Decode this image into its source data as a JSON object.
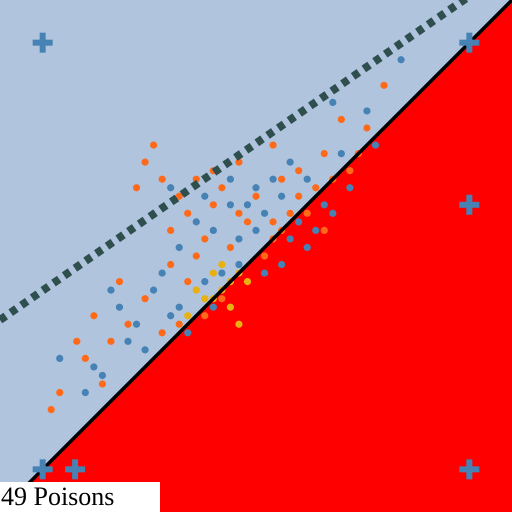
{
  "caption": "49 Poisons",
  "chart_data": {
    "type": "scatter",
    "title": "",
    "xlabel": "",
    "ylabel": "",
    "xlim": [
      -3,
      3
    ],
    "ylim": [
      -3,
      3
    ],
    "grid": false,
    "regions": {
      "upper_color": "#b0c4de",
      "lower_color": "#ff0000"
    },
    "boundaries": [
      {
        "style": "solid",
        "color": "#000000",
        "slope": 1.0,
        "intercept": 0.0
      },
      {
        "style": "dotted",
        "color": "#2f4f4f",
        "slope": 0.69,
        "intercept": 1.32
      }
    ],
    "markers": [
      {
        "symbol": "plus",
        "color": "#4682b4",
        "x": -2.5,
        "y": 2.5
      },
      {
        "symbol": "plus",
        "color": "#4682b4",
        "x": 2.5,
        "y": 2.5
      },
      {
        "symbol": "plus",
        "color": "#4682b4",
        "x": 2.5,
        "y": 0.6
      },
      {
        "symbol": "plus",
        "color": "#4682b4",
        "x": 2.5,
        "y": -2.5
      },
      {
        "symbol": "plus",
        "color": "#4682b4",
        "x": -2.5,
        "y": -2.5
      },
      {
        "symbol": "plus",
        "color": "#4682b4",
        "x": -2.12,
        "y": -2.5
      }
    ],
    "series": [
      {
        "color": "#4682b4",
        "points": [
          [
            -1.0,
            0.8
          ],
          [
            0.9,
            1.8
          ],
          [
            -0.3,
            0.6
          ],
          [
            0.0,
            0.3
          ],
          [
            -0.6,
            -0.3
          ],
          [
            -0.9,
            -0.6
          ],
          [
            -1.5,
            -1.0
          ],
          [
            -1.2,
            -0.4
          ],
          [
            0.4,
            0.2
          ],
          [
            0.1,
            -0.2
          ],
          [
            -0.2,
            0.2
          ],
          [
            0.6,
            0.9
          ],
          [
            1.1,
            0.8
          ],
          [
            1.7,
            2.3
          ],
          [
            0.3,
            0.7
          ],
          [
            -0.5,
            0.3
          ],
          [
            -1.6,
            -0.6
          ],
          [
            -1.9,
            -1.3
          ],
          [
            -2.0,
            -1.6
          ],
          [
            -0.1,
            0.6
          ],
          [
            0.5,
            0.4
          ],
          [
            0.8,
            0.6
          ],
          [
            -0.4,
            -0.2
          ],
          [
            -1.1,
            -0.2
          ],
          [
            -0.7,
            0.4
          ],
          [
            0.2,
            0.9
          ],
          [
            1.0,
            1.2
          ],
          [
            1.3,
            1.7
          ],
          [
            -1.3,
            -1.1
          ],
          [
            -0.8,
            -0.9
          ],
          [
            0.7,
            0.3
          ],
          [
            -0.2,
            -0.1
          ],
          [
            0.0,
            0.8
          ],
          [
            -1.7,
            -0.4
          ],
          [
            0.4,
            1.1
          ],
          [
            -0.9,
            0.1
          ],
          [
            1.4,
            1.3
          ],
          [
            -1.4,
            -0.8
          ],
          [
            -0.6,
            0.7
          ],
          [
            0.3,
            -0.1
          ],
          [
            -2.3,
            -1.2
          ],
          [
            -1.8,
            -1.4
          ],
          [
            -0.3,
            0.9
          ],
          [
            0.6,
            0.1
          ],
          [
            -1.0,
            -0.7
          ],
          [
            0.1,
            0.5
          ],
          [
            -0.5,
            -0.6
          ],
          [
            0.9,
            0.5
          ]
        ]
      },
      {
        "color": "#ff6a1a",
        "points": [
          [
            -1.3,
            1.1
          ],
          [
            -0.5,
            1.0
          ],
          [
            -0.9,
            0.7
          ],
          [
            -0.2,
            0.5
          ],
          [
            0.2,
            0.4
          ],
          [
            -0.6,
            0.2
          ],
          [
            -1.0,
            0.3
          ],
          [
            -1.3,
            -0.5
          ],
          [
            -1.7,
            -1.0
          ],
          [
            -2.0,
            -1.2
          ],
          [
            -2.3,
            -1.6
          ],
          [
            0.5,
            0.7
          ],
          [
            0.8,
            1.2
          ],
          [
            1.0,
            1.6
          ],
          [
            1.3,
            1.5
          ],
          [
            -0.8,
            -0.3
          ],
          [
            -0.4,
            -0.5
          ],
          [
            0.1,
            0.0
          ],
          [
            -0.1,
            0.4
          ],
          [
            -0.7,
            0.9
          ],
          [
            -1.1,
            0.9
          ],
          [
            0.3,
            0.9
          ],
          [
            0.7,
            0.8
          ],
          [
            -0.3,
            -0.3
          ],
          [
            -1.5,
            -0.8
          ],
          [
            -1.9,
            -0.7
          ],
          [
            -0.2,
            1.1
          ],
          [
            0.4,
            0.5
          ],
          [
            0.9,
            0.9
          ],
          [
            1.2,
            1.2
          ],
          [
            -1.2,
            1.3
          ],
          [
            -1.4,
            0.8
          ],
          [
            -0.9,
            -0.8
          ],
          [
            -0.5,
            0.6
          ],
          [
            0.0,
            0.7
          ],
          [
            0.6,
            0.5
          ],
          [
            -1.6,
            -0.3
          ],
          [
            -2.1,
            -1.0
          ],
          [
            -0.8,
            0.5
          ],
          [
            0.2,
            0.2
          ],
          [
            -0.3,
            0.1
          ],
          [
            0.5,
            1.0
          ],
          [
            1.5,
            2.0
          ],
          [
            -1.0,
            -0.1
          ],
          [
            -0.6,
            -0.7
          ],
          [
            0.8,
            0.3
          ],
          [
            -1.8,
            -1.5
          ],
          [
            -2.4,
            -1.8
          ],
          [
            0.2,
            1.3
          ],
          [
            -0.4,
            0.8
          ],
          [
            1.1,
            1.0
          ],
          [
            -1.1,
            -0.9
          ],
          [
            -0.7,
            0.0
          ],
          [
            0.3,
            0.3
          ]
        ]
      },
      {
        "color": "#e8b010",
        "points": [
          [
            -0.5,
            -0.2
          ],
          [
            -0.4,
            -0.4
          ],
          [
            -0.3,
            -0.3
          ],
          [
            -0.6,
            -0.5
          ],
          [
            -0.2,
            -0.2
          ],
          [
            -0.4,
            -0.1
          ],
          [
            -0.5,
            -0.5
          ],
          [
            -0.3,
            -0.6
          ],
          [
            -0.7,
            -0.4
          ],
          [
            -0.1,
            -0.3
          ],
          [
            -0.8,
            -0.7
          ],
          [
            -0.2,
            -0.8
          ]
        ]
      }
    ]
  }
}
